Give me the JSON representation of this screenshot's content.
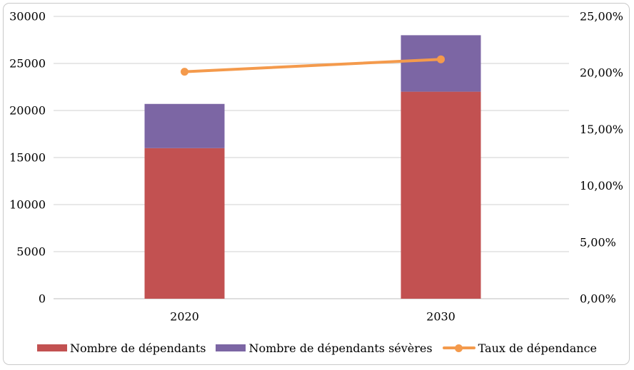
{
  "chart_data": {
    "type": "bar",
    "subtype": "stacked-column-with-line-combo",
    "title": "",
    "categories": [
      "2020",
      "2030"
    ],
    "series": [
      {
        "name": "Nombre de dépendants",
        "render": "bar",
        "stack": "dependants",
        "axis": "left",
        "color": "#C25151",
        "values": [
          16000,
          22000
        ]
      },
      {
        "name": "Nombre de dépendants sévères",
        "render": "bar",
        "stack": "dependants",
        "axis": "left",
        "color": "#7C66A4",
        "values": [
          4700,
          6000
        ]
      },
      {
        "name": "Taux de dépendance",
        "render": "line",
        "axis": "right",
        "color": "#F49A4C",
        "marker": "circle",
        "unit": "%",
        "values": [
          20.1,
          21.2
        ]
      }
    ],
    "left_axis": {
      "min": 0,
      "max": 30000,
      "step": 5000,
      "tick_labels": [
        "0",
        "5000",
        "10000",
        "15000",
        "20000",
        "25000",
        "30000"
      ]
    },
    "right_axis": {
      "min": 0,
      "max": 25,
      "step": 5,
      "tick_labels": [
        "0,00%",
        "5,00%",
        "10,00%",
        "15,00%",
        "20,00%",
        "25,00%"
      ]
    },
    "grid": true,
    "gridline_color": "#D9D9D9",
    "axis_line_color": "#D9D9D9",
    "text_color": "#000000",
    "background": "#FFFFFF",
    "frame_border_color": "#C9C9C9",
    "legend_position": "bottom"
  }
}
